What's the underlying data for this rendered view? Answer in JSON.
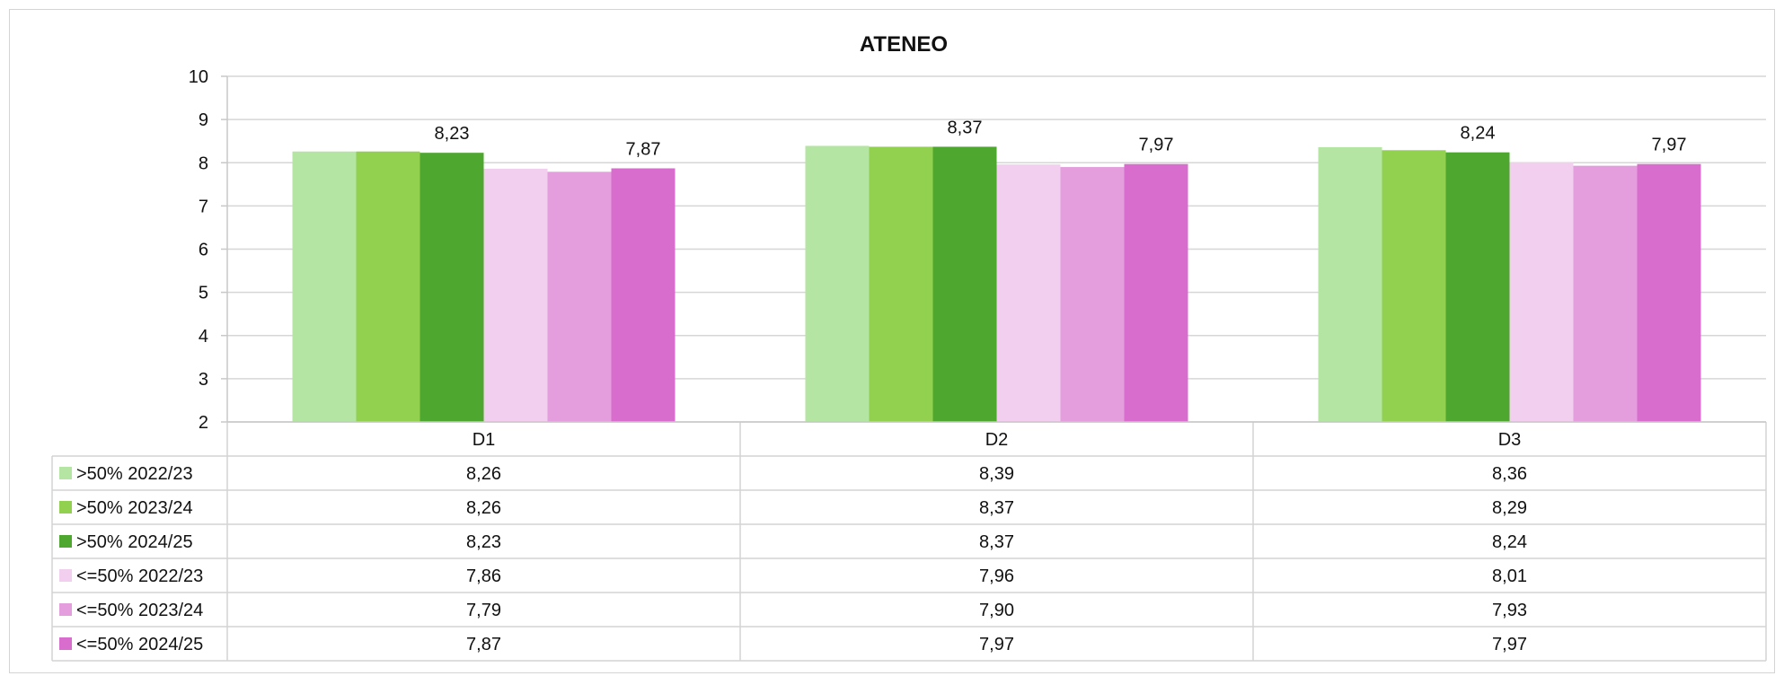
{
  "chart_data": {
    "type": "bar",
    "title": "ATENEO",
    "xlabel": "",
    "ylabel": "",
    "ylim": [
      2,
      10
    ],
    "yticks": [
      2,
      3,
      4,
      5,
      6,
      7,
      8,
      9,
      10
    ],
    "grid": true,
    "legend": "data-table",
    "categories": [
      "D1",
      "D2",
      "D3"
    ],
    "series": [
      {
        "name": ">50% 2022/23",
        "values": [
          8.26,
          8.39,
          8.36
        ],
        "labels": [
          "8,26",
          "8,39",
          "8,36"
        ],
        "color": "#b4e5a2"
      },
      {
        "name": ">50% 2023/24",
        "values": [
          8.26,
          8.37,
          8.29
        ],
        "labels": [
          "8,26",
          "8,37",
          "8,29"
        ],
        "color": "#92d050"
      },
      {
        "name": ">50% 2024/25",
        "values": [
          8.23,
          8.37,
          8.24
        ],
        "labels": [
          "8,23",
          "8,37",
          "8,24"
        ],
        "color": "#4ea72e"
      },
      {
        "name": "<=50% 2022/23",
        "values": [
          7.86,
          7.96,
          8.01
        ],
        "labels": [
          "7,86",
          "7,96",
          "8,01"
        ],
        "color": "#f2ceef"
      },
      {
        "name": "<=50% 2023/24",
        "values": [
          7.79,
          7.9,
          7.93
        ],
        "labels": [
          "7,79",
          "7,90",
          "7,93"
        ],
        "color": "#e49edd"
      },
      {
        "name": "<=50% 2024/25",
        "values": [
          7.87,
          7.97,
          7.97
        ],
        "labels": [
          "7,87",
          "7,97",
          "7,97"
        ],
        "color": "#d86dcd"
      }
    ],
    "bar_data_labels": [
      {
        "series": ">50% 2024/25",
        "labels": [
          "8,23",
          "8,37",
          "8,24"
        ]
      },
      {
        "series": "<=50% 2024/25",
        "labels": [
          "7,87",
          "7,97",
          "7,97"
        ]
      }
    ]
  }
}
